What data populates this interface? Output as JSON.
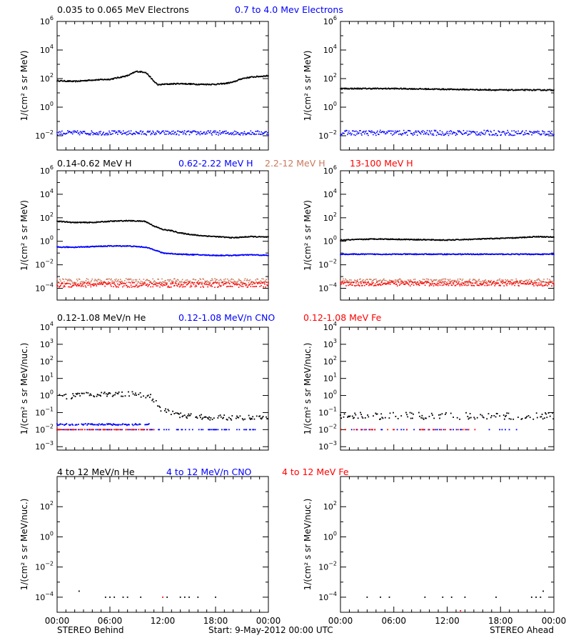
{
  "colors": {
    "black": "#000000",
    "blue": "#0000ff",
    "salmon": "#c97a5e",
    "red": "#ff0000"
  },
  "footer": {
    "left": "STEREO Behind",
    "center": "Start:  9-May-2012 00:00 UTC",
    "right": "STEREO Ahead"
  },
  "xaxis": {
    "ticks": [
      0,
      6,
      12,
      18,
      24
    ],
    "tick_labels": [
      "00:00",
      "06:00",
      "12:00",
      "18:00",
      "00:00"
    ],
    "minor_step_hours": 1,
    "range_hours": [
      0,
      24
    ]
  },
  "panels": [
    {
      "row": 0,
      "ylabel": "1/(cm² s sr MeV)",
      "ylim_exp": [
        -3,
        6
      ],
      "tick_exps": [
        -2,
        0,
        2,
        4,
        6
      ],
      "headers": [
        {
          "text": "0.035 to 0.065 MeV Electrons",
          "color": "#000000"
        },
        {
          "text": "0.7 to 4.0 Mev Electrons",
          "color": "#0000ff"
        }
      ]
    },
    {
      "row": 1,
      "ylabel": "1/(cm² s sr MeV)",
      "ylim_exp": [
        -5,
        6
      ],
      "tick_exps": [
        -4,
        -2,
        0,
        2,
        4,
        6
      ],
      "headers": [
        {
          "text": "0.14-0.62 MeV H",
          "color": "#000000"
        },
        {
          "text": "0.62-2.22 MeV H",
          "color": "#0000ff"
        },
        {
          "text": "2.2-12 MeV H",
          "color": "#c97a5e"
        },
        {
          "text": "13-100 MeV H",
          "color": "#ff0000"
        }
      ]
    },
    {
      "row": 2,
      "ylabel": "1/(cm² s sr MeV/nuc.)",
      "ylim_exp": [
        -3.2,
        4
      ],
      "tick_exps": [
        -3,
        -2,
        -1,
        0,
        1,
        2,
        3,
        4
      ],
      "headers": [
        {
          "text": "0.12-1.08 MeV/n He",
          "color": "#000000"
        },
        {
          "text": "0.12-1.08 MeV/n CNO",
          "color": "#0000ff"
        },
        {
          "text": "0.12-1.08 MeV Fe",
          "color": "#ff0000"
        }
      ]
    },
    {
      "row": 3,
      "ylabel": "1/(cm² s sr MeV/nuc.)",
      "ylim_exp": [
        -5,
        4
      ],
      "tick_exps": [
        -4,
        -2,
        0,
        2
      ],
      "headers": [
        {
          "text": "4 to 12 MeV/n He",
          "color": "#000000"
        },
        {
          "text": "4 to 12 MeV/n CNO",
          "color": "#0000ff"
        },
        {
          "text": "4 to 12 MeV Fe",
          "color": "#ff0000"
        }
      ]
    }
  ],
  "chart_data": {
    "type": "scatter",
    "yscale": "log",
    "x_units": "hours",
    "columns": [
      "STEREO Behind",
      "STEREO Ahead"
    ],
    "series": [
      {
        "panel": 0,
        "column": 0,
        "color": "#000000",
        "style": "line",
        "x": [
          0,
          2,
          4,
          6,
          8,
          9,
          10,
          10.3,
          11,
          11.5,
          12,
          14,
          16,
          18,
          19,
          20,
          21,
          22,
          23,
          24
        ],
        "y_exp": [
          1.85,
          1.8,
          1.9,
          1.95,
          2.2,
          2.5,
          2.45,
          2.3,
          1.8,
          1.55,
          1.6,
          1.65,
          1.6,
          1.6,
          1.65,
          1.75,
          2.0,
          2.1,
          2.15,
          2.2
        ]
      },
      {
        "panel": 0,
        "column": 0,
        "color": "#0000ff",
        "style": "scatter",
        "x": [
          0,
          24
        ],
        "y_exp": [
          -1.8,
          -1.8
        ],
        "noise": 0.15
      },
      {
        "panel": 0,
        "column": 1,
        "color": "#000000",
        "style": "line",
        "x": [
          0,
          6,
          12,
          18,
          24
        ],
        "y_exp": [
          1.3,
          1.3,
          1.25,
          1.2,
          1.2
        ]
      },
      {
        "panel": 0,
        "column": 1,
        "color": "#0000ff",
        "style": "scatter",
        "x": [
          0,
          24
        ],
        "y_exp": [
          -1.8,
          -1.8
        ],
        "noise": 0.18
      },
      {
        "panel": 1,
        "column": 0,
        "color": "#000000",
        "style": "line",
        "x": [
          0,
          2,
          4,
          6,
          8,
          10,
          11,
          12,
          13,
          14,
          15,
          16,
          18,
          20,
          22,
          24
        ],
        "y_exp": [
          1.7,
          1.6,
          1.6,
          1.7,
          1.75,
          1.7,
          1.3,
          1.0,
          0.9,
          0.7,
          0.6,
          0.5,
          0.4,
          0.3,
          0.4,
          0.35
        ]
      },
      {
        "panel": 1,
        "column": 0,
        "color": "#0000ff",
        "style": "line",
        "x": [
          0,
          2,
          4,
          6,
          8,
          10,
          11,
          12,
          14,
          16,
          18,
          20,
          22,
          24
        ],
        "y_exp": [
          -0.5,
          -0.5,
          -0.45,
          -0.4,
          -0.4,
          -0.5,
          -0.7,
          -1.0,
          -1.1,
          -1.15,
          -1.2,
          -1.2,
          -1.15,
          -1.2
        ]
      },
      {
        "panel": 1,
        "column": 0,
        "color": "#c97a5e",
        "style": "scatter",
        "x": [
          0,
          24
        ],
        "y_exp": [
          -3.4,
          -3.4
        ],
        "noise": 0.22
      },
      {
        "panel": 1,
        "column": 0,
        "color": "#ff0000",
        "style": "scatter",
        "x": [
          0,
          24
        ],
        "y_exp": [
          -3.7,
          -3.7
        ],
        "noise": 0.22
      },
      {
        "panel": 1,
        "column": 1,
        "color": "#000000",
        "style": "line",
        "x": [
          0,
          4,
          8,
          12,
          16,
          20,
          22,
          24
        ],
        "y_exp": [
          0.1,
          0.2,
          0.15,
          0.1,
          0.2,
          0.3,
          0.4,
          0.35
        ]
      },
      {
        "panel": 1,
        "column": 1,
        "color": "#0000ff",
        "style": "line",
        "x": [
          0,
          6,
          12,
          18,
          24
        ],
        "y_exp": [
          -1.1,
          -1.1,
          -1.1,
          -1.1,
          -1.1
        ]
      },
      {
        "panel": 1,
        "column": 1,
        "color": "#c97a5e",
        "style": "scatter",
        "x": [
          0,
          24
        ],
        "y_exp": [
          -3.4,
          -3.4
        ],
        "noise": 0.2
      },
      {
        "panel": 1,
        "column": 1,
        "color": "#ff0000",
        "style": "scatter",
        "x": [
          0,
          24
        ],
        "y_exp": [
          -3.6,
          -3.6
        ],
        "noise": 0.2
      },
      {
        "panel": 2,
        "column": 0,
        "color": "#000000",
        "style": "sparse",
        "x": [
          0,
          4,
          8,
          10.5,
          11.5,
          12,
          13,
          14,
          16,
          18,
          20,
          22,
          24
        ],
        "y_exp": [
          -0.1,
          0.05,
          0.1,
          0.0,
          -0.6,
          -0.9,
          -1.0,
          -1.15,
          -1.25,
          -1.3,
          -1.3,
          -1.3,
          -1.3
        ],
        "noise": 0.15,
        "density": 0.6
      },
      {
        "panel": 2,
        "column": 0,
        "color": "#0000ff",
        "style": "sparse",
        "x": [
          0,
          10.5
        ],
        "y_exp": [
          -1.7,
          -1.7
        ],
        "noise": 0.05,
        "density": 0.75
      },
      {
        "panel": 2,
        "column": 0,
        "color": "#0000ff",
        "style": "sparse",
        "x": [
          0,
          24
        ],
        "y_exp": [
          -2.0,
          -2.0
        ],
        "noise": 0.0,
        "density": 0.35
      },
      {
        "panel": 2,
        "column": 0,
        "color": "#ff0000",
        "style": "sparse",
        "x": [
          0,
          11
        ],
        "y_exp": [
          -2.0,
          -2.0
        ],
        "noise": 0.0,
        "density": 0.45
      },
      {
        "panel": 2,
        "column": 1,
        "color": "#000000",
        "style": "sparse",
        "x": [
          0,
          24
        ],
        "y_exp": [
          -1.2,
          -1.2
        ],
        "noise": 0.2,
        "density": 0.45
      },
      {
        "panel": 2,
        "column": 1,
        "color": "#0000ff",
        "style": "sparse",
        "x": [
          0,
          20
        ],
        "y_exp": [
          -2.0,
          -2.0
        ],
        "noise": 0.0,
        "density": 0.18
      },
      {
        "panel": 2,
        "column": 1,
        "color": "#ff0000",
        "style": "sparse",
        "x": [
          0,
          16
        ],
        "y_exp": [
          -2.0,
          -2.0
        ],
        "noise": 0.0,
        "density": 0.12
      },
      {
        "panel": 3,
        "column": 0,
        "color": "#000000",
        "style": "points",
        "x": [
          2.5,
          5.5,
          6.0,
          6.5,
          7.5,
          8.0,
          9.5,
          12.5,
          14.0,
          14.5,
          15.0,
          16.0,
          18.0
        ],
        "y_exp": [
          -3.6,
          -4.0,
          -4.0,
          -4.0,
          -4.0,
          -4.0,
          -4.0,
          -4.0,
          -4.0,
          -4.0,
          -4.0,
          -4.0,
          -4.0
        ]
      },
      {
        "panel": 3,
        "column": 0,
        "color": "#ff0000",
        "style": "points",
        "x": [
          12.0
        ],
        "y_exp": [
          -4.0
        ]
      },
      {
        "panel": 3,
        "column": 1,
        "color": "#000000",
        "style": "points",
        "x": [
          3.0,
          4.5,
          5.5,
          9.5,
          11.5,
          12.5,
          14.0,
          17.5,
          21.5,
          22.0,
          22.5,
          22.8
        ],
        "y_exp": [
          -4.0,
          -4.0,
          -4.0,
          -4.0,
          -4.0,
          -4.0,
          -4.0,
          -4.0,
          -4.0,
          -4.0,
          -4.0,
          -3.6
        ]
      },
      {
        "panel": 3,
        "column": 1,
        "color": "#ff0000",
        "style": "points",
        "x": [
          13.5
        ],
        "y_exp": [
          -4.9
        ]
      }
    ]
  }
}
